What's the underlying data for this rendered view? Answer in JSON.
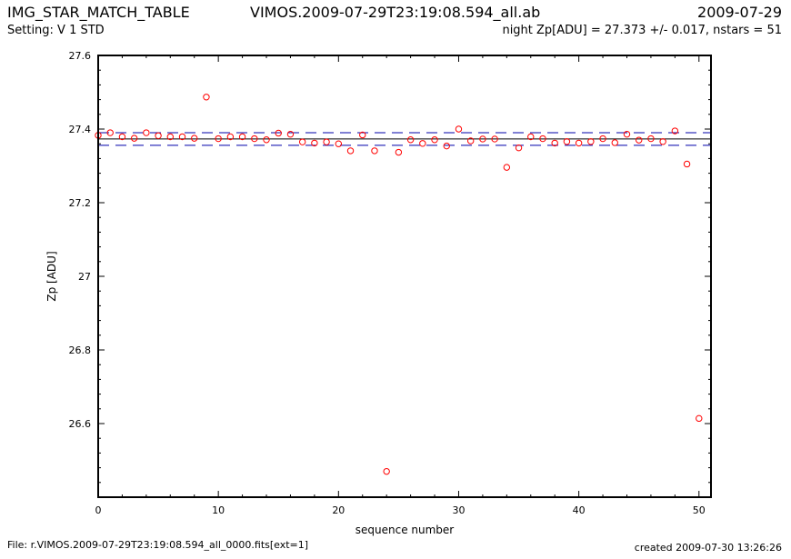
{
  "header": {
    "left": "IMG_STAR_MATCH_TABLE",
    "center": "VIMOS.2009-07-29T23:19:08.594_all.ab",
    "right": "2009-07-29",
    "setting": "Setting:  V 1 STD",
    "zp_summary": "night Zp[ADU] = 27.373 +/- 0.017, nstars = 51"
  },
  "footer": {
    "file": "File: r.VIMOS.2009-07-29T23:19:08.594_all_0000.fits[ext=1]",
    "created": "created 2009-07-30 13:26:26"
  },
  "colors": {
    "points": "#ff0000",
    "mean_line": "#000000",
    "sigma_lines": "#0000aa"
  },
  "chart_data": {
    "type": "scatter",
    "xlabel": "sequence number",
    "ylabel": "Zp [ADU]",
    "xlim": [
      0,
      51
    ],
    "ylim": [
      26.4,
      27.6
    ],
    "xticks": [
      0,
      10,
      20,
      30,
      40,
      50
    ],
    "xtick_labels": [
      "0",
      "10",
      "20",
      "30",
      "40",
      "50"
    ],
    "yticks": [
      26.6,
      26.8,
      27.0,
      27.2,
      27.4,
      27.6
    ],
    "ytick_labels": [
      "26.6",
      "26.8",
      "27",
      "27.2",
      "27.4",
      "27.6"
    ],
    "mean": 27.373,
    "sigma": 0.017,
    "x": [
      0,
      1,
      2,
      3,
      4,
      5,
      6,
      7,
      8,
      9,
      10,
      11,
      12,
      13,
      14,
      15,
      16,
      17,
      18,
      19,
      20,
      21,
      22,
      23,
      24,
      25,
      26,
      27,
      28,
      29,
      30,
      31,
      32,
      33,
      34,
      35,
      36,
      37,
      38,
      39,
      40,
      41,
      42,
      43,
      44,
      45,
      46,
      47,
      48,
      49,
      50
    ],
    "y": [
      27.383,
      27.39,
      27.379,
      27.375,
      27.39,
      27.382,
      27.379,
      27.379,
      27.375,
      27.487,
      27.374,
      27.379,
      27.379,
      27.374,
      27.371,
      27.389,
      27.386,
      27.365,
      27.362,
      27.365,
      27.36,
      27.341,
      27.384,
      27.341,
      26.47,
      27.337,
      27.371,
      27.361,
      27.371,
      27.354,
      27.4,
      27.368,
      27.373,
      27.373,
      27.296,
      27.349,
      27.379,
      27.374,
      27.362,
      27.366,
      27.362,
      27.366,
      27.374,
      27.363,
      27.386,
      27.37,
      27.374,
      27.366,
      27.395,
      27.305,
      26.614
    ]
  }
}
